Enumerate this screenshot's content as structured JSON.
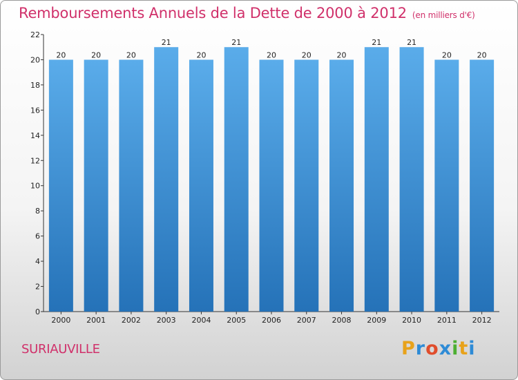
{
  "title": "Remboursements Annuels de la Dette de 2000 à 2012",
  "unit": "(en milliers d'€)",
  "place": "SURIAUVILLE",
  "logo": {
    "letters": [
      "P",
      "r",
      "o",
      "x",
      "i",
      "t",
      "i"
    ],
    "colors": [
      "#e8a21a",
      "#2e8bd6",
      "#e04d2c",
      "#2e8bd6",
      "#4caf32",
      "#e8a21a",
      "#2e8bd6"
    ]
  },
  "colors": {
    "bar": "#4a9fe0",
    "bar_dark": "#2a78c0",
    "title": "#d0306a"
  },
  "chart_data": {
    "type": "bar",
    "categories": [
      "2000",
      "2001",
      "2002",
      "2003",
      "2004",
      "2005",
      "2006",
      "2007",
      "2008",
      "2009",
      "2010",
      "2011",
      "2012"
    ],
    "values": [
      20,
      20,
      20,
      21,
      20,
      21,
      20,
      20,
      20,
      21,
      21,
      20,
      20
    ],
    "data_labels": [
      "20",
      "20",
      "20",
      "21",
      "20",
      "21",
      "20",
      "20",
      "20",
      "21",
      "21",
      "20",
      "20"
    ],
    "ylim": [
      0,
      22
    ],
    "yticks": [
      0,
      2,
      4,
      6,
      8,
      10,
      12,
      14,
      16,
      18,
      20,
      22
    ],
    "grid": false,
    "legend": "none",
    "xlabel": "",
    "ylabel": ""
  }
}
